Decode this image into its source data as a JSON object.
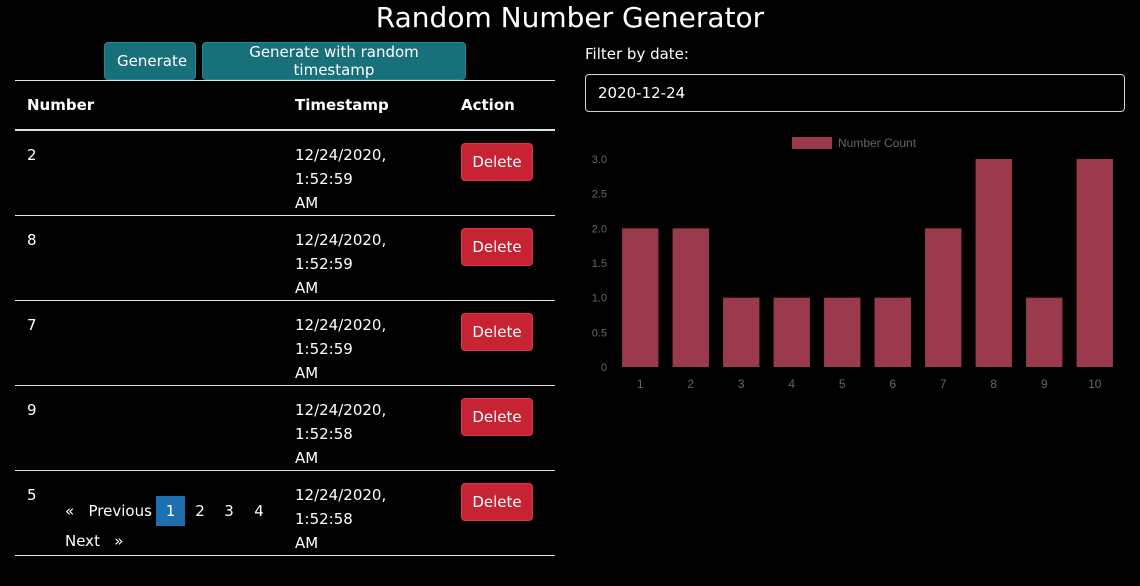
{
  "title": "Random Number Generator",
  "buttons": {
    "generate": "Generate",
    "generate_random_ts": "Generate with random timestamp"
  },
  "table": {
    "headers": [
      "Number",
      "Timestamp",
      "Action"
    ],
    "rows": [
      {
        "number": "2",
        "timestamp": "12/24/2020, 1:52:59",
        "ampm": "AM",
        "action": "Delete"
      },
      {
        "number": "8",
        "timestamp": "12/24/2020, 1:52:59",
        "ampm": "AM",
        "action": "Delete"
      },
      {
        "number": "7",
        "timestamp": "12/24/2020, 1:52:59",
        "ampm": "AM",
        "action": "Delete"
      },
      {
        "number": "9",
        "timestamp": "12/24/2020, 1:52:58",
        "ampm": "AM",
        "action": "Delete"
      },
      {
        "number": "5",
        "timestamp": "12/24/2020, 1:52:58",
        "ampm": "AM",
        "action": "Delete"
      }
    ]
  },
  "pagination": {
    "prev_icon": "«",
    "prev_label": "Previous",
    "pages": [
      "1",
      "2",
      "3",
      "4"
    ],
    "active_page": "1",
    "next_label": "Next",
    "next_icon": "»"
  },
  "filter": {
    "label": "Filter by date:",
    "value": "2020-12-24"
  },
  "colors": {
    "bar": "#9a3a4c",
    "primary": "#17707a",
    "danger": "#c82333",
    "active_page": "#1e6fb0"
  },
  "chart_data": {
    "type": "bar",
    "categories": [
      "1",
      "2",
      "3",
      "4",
      "5",
      "6",
      "7",
      "8",
      "9",
      "10"
    ],
    "series": [
      {
        "name": "Number Count",
        "values": [
          2,
          2,
          1,
          1,
          1,
          1,
          2,
          3,
          1,
          3
        ]
      }
    ],
    "ylim": [
      0,
      3
    ],
    "yticks": [
      "0",
      "0.5",
      "1.0",
      "1.5",
      "2.0",
      "2.5",
      "3.0"
    ],
    "legend": "top-center",
    "grid": false
  }
}
